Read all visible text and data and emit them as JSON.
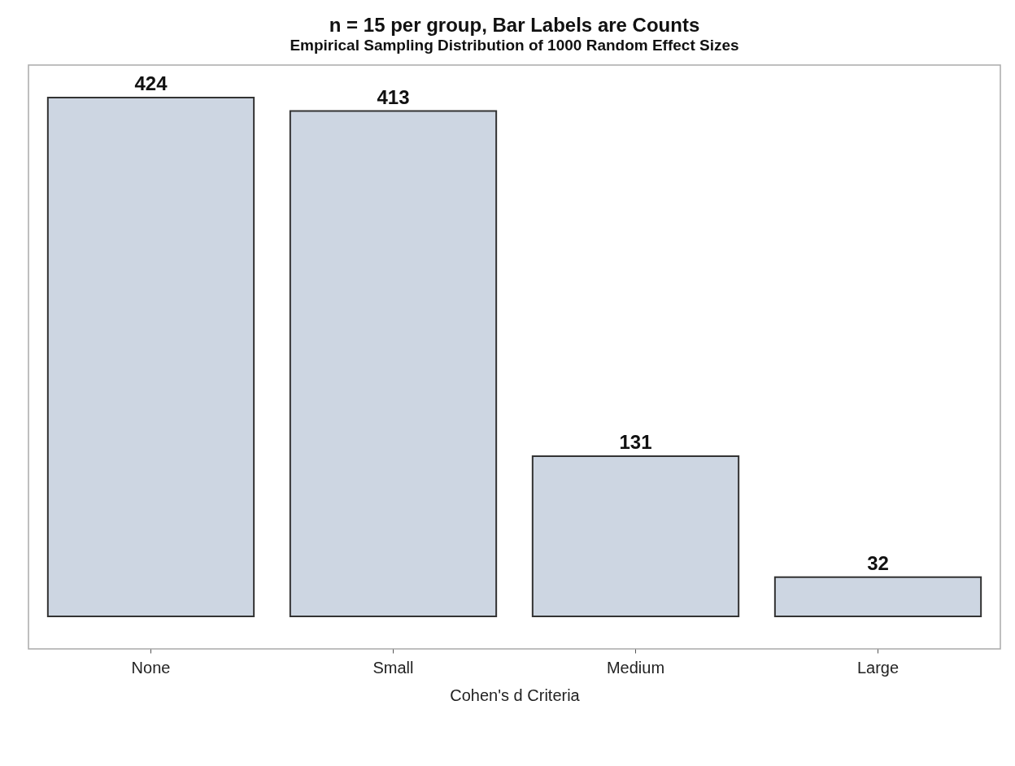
{
  "chart_data": {
    "type": "bar",
    "title": "n = 15 per group, Bar Labels are Counts",
    "subtitle": "Empirical Sampling Distribution of 1000 Random Effect Sizes",
    "xlabel": "Cohen's d Criteria",
    "categories": [
      "None",
      "Small",
      "Medium",
      "Large"
    ],
    "values": [
      424,
      413,
      131,
      32
    ],
    "color": "#cdd6e2",
    "data_labels": true,
    "grid": false
  }
}
